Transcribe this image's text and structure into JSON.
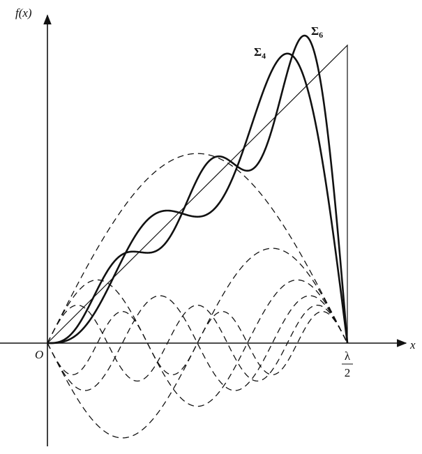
{
  "axes": {
    "y_label": "f(x)",
    "x_label": "x",
    "origin": "O"
  },
  "x_end_label": {
    "numerator": "λ",
    "denominator": "2"
  },
  "curve_labels": [
    {
      "symbol": "Σ",
      "subscript": "4"
    },
    {
      "symbol": "Σ",
      "subscript": "6"
    }
  ]
}
